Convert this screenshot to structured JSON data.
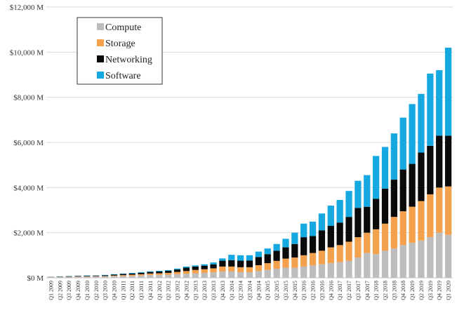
{
  "chart_data": {
    "type": "bar",
    "stacked": true,
    "grid": true,
    "legend_placement": "top-left",
    "ylim": [
      0,
      12000
    ],
    "y_ticks": [
      0,
      2000,
      4000,
      6000,
      8000,
      10000,
      12000
    ],
    "y_tick_labels": [
      "$0 M",
      "$2,000 M",
      "$4,000 M",
      "$6,000 M",
      "$8,000 M",
      "$10,000 M",
      "$12,000 M"
    ],
    "categories": [
      "Q1 2009",
      "Q2 2009",
      "Q3 2009",
      "Q4 2009",
      "Q1 2010",
      "Q2 2010",
      "Q3 2010",
      "Q4 2010",
      "Q1 2011",
      "Q2 2011",
      "Q3 2011",
      "Q4 2011",
      "Q1 2012",
      "Q2 2012",
      "Q3 2012",
      "Q4 2012",
      "Q1 2013",
      "Q2 2013",
      "Q3 2013",
      "Q4 2013",
      "Q1 2014",
      "Q2 2014",
      "Q3 2014",
      "Q4 2014",
      "Q1 2015",
      "Q2 2015",
      "Q3 2015",
      "Q4 2015",
      "Q1 2016",
      "Q2 2016",
      "Q3 2016",
      "Q4 2016",
      "Q1 2017",
      "Q2 2017",
      "Q3 2017",
      "Q4 2017",
      "Q1 2018",
      "Q2 2018",
      "Q3 2018",
      "Q4 2018",
      "Q1 2019",
      "Q2 2019",
      "Q3 2019",
      "Q4 2019",
      "Q1 2020"
    ],
    "series": [
      {
        "name": "Compute",
        "color": "#bdbdbd",
        "values": [
          25,
          30,
          40,
          45,
          50,
          55,
          60,
          70,
          80,
          90,
          100,
          120,
          130,
          140,
          160,
          180,
          200,
          220,
          240,
          280,
          280,
          250,
          250,
          300,
          350,
          400,
          450,
          450,
          500,
          550,
          600,
          650,
          700,
          750,
          900,
          1100,
          1050,
          1200,
          1300,
          1450,
          1550,
          1650,
          1800,
          2000,
          1900
        ]
      },
      {
        "name": "Storage",
        "color": "#f4a14e",
        "values": [
          5,
          10,
          10,
          15,
          15,
          20,
          20,
          30,
          40,
          50,
          60,
          70,
          70,
          80,
          100,
          120,
          150,
          160,
          180,
          220,
          220,
          220,
          220,
          260,
          300,
          350,
          400,
          450,
          500,
          550,
          600,
          700,
          750,
          850,
          900,
          900,
          1100,
          1200,
          1400,
          1500,
          1600,
          1750,
          1900,
          2000,
          2150
        ]
      },
      {
        "name": "Networking",
        "color": "#0a0a0a",
        "values": [
          10,
          15,
          20,
          20,
          25,
          25,
          30,
          40,
          50,
          50,
          60,
          70,
          80,
          90,
          110,
          150,
          150,
          160,
          180,
          260,
          280,
          290,
          300,
          360,
          400,
          450,
          500,
          600,
          800,
          750,
          900,
          950,
          1000,
          1100,
          1300,
          1150,
          1350,
          1550,
          1650,
          1850,
          1900,
          2150,
          2150,
          2300,
          2250
        ]
      },
      {
        "name": "Software",
        "color": "#16a9e1",
        "values": [
          5,
          10,
          10,
          10,
          15,
          10,
          20,
          20,
          20,
          30,
          30,
          30,
          30,
          30,
          40,
          50,
          50,
          60,
          80,
          100,
          240,
          240,
          230,
          240,
          250,
          300,
          380,
          500,
          600,
          640,
          750,
          900,
          1000,
          1150,
          1200,
          1400,
          1900,
          1850,
          2050,
          2300,
          2650,
          2600,
          3200,
          2900,
          3900
        ]
      }
    ]
  }
}
